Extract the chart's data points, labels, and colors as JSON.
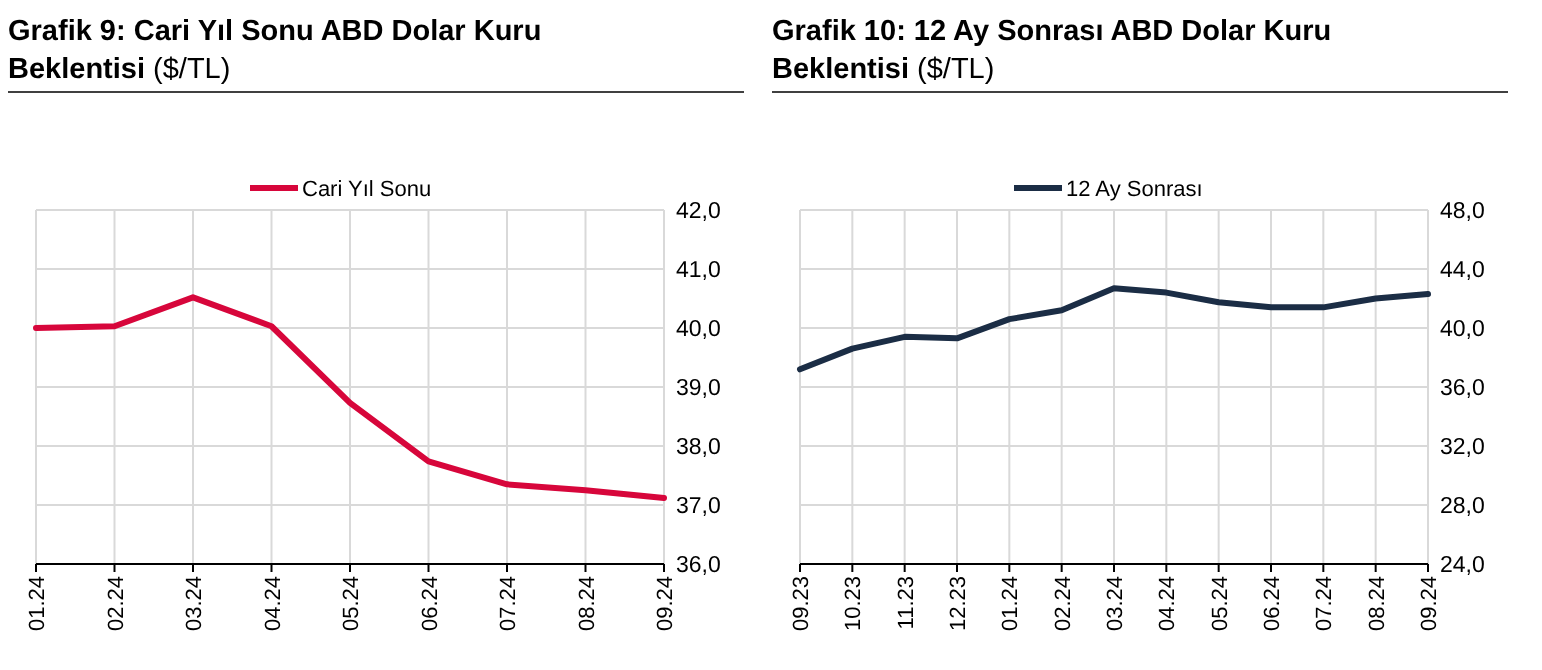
{
  "chart_data": [
    {
      "type": "line",
      "title": "Grafik 9: Cari Yıl Sonu ABD Dolar Kuru Beklentisi ($/TL)",
      "categories": [
        "01.24",
        "02.24",
        "03.24",
        "04.24",
        "05.24",
        "06.24",
        "07.24",
        "08.24",
        "09.24"
      ],
      "series": [
        {
          "name": "Cari Yıl Sonu",
          "color": "#d7063b",
          "values": [
            40.0,
            40.03,
            40.52,
            40.03,
            38.73,
            37.74,
            37.35,
            37.25,
            37.12
          ]
        }
      ],
      "ylim": [
        36,
        42
      ],
      "yticks": [
        {
          "value": 36,
          "label": "36,0"
        },
        {
          "value": 37,
          "label": "37,0"
        },
        {
          "value": 38,
          "label": "38,0"
        },
        {
          "value": 39,
          "label": "39,0"
        },
        {
          "value": 40,
          "label": "40,0"
        },
        {
          "value": 41,
          "label": "41,0"
        },
        {
          "value": 42,
          "label": "42,0"
        }
      ],
      "grid": true,
      "legend": "top",
      "marker": "none",
      "line_style": "solid"
    },
    {
      "type": "line",
      "title": "Grafik 10: 12 Ay Sonrası ABD Dolar Kuru Beklentisi ($/TL)",
      "categories": [
        "09.23",
        "10.23",
        "11.23",
        "12.23",
        "01.24",
        "02.24",
        "03.24",
        "04.24",
        "05.24",
        "06.24",
        "07.24",
        "08.24",
        "09.24"
      ],
      "series": [
        {
          "name": "12 Ay Sonrası",
          "color": "#1b2d45",
          "values": [
            37.2,
            38.6,
            39.4,
            39.3,
            40.6,
            41.2,
            42.7,
            42.4,
            41.75,
            41.4,
            41.4,
            42.0,
            42.3
          ]
        }
      ],
      "ylim": [
        24,
        48
      ],
      "yticks": [
        {
          "value": 24,
          "label": "24,0"
        },
        {
          "value": 28,
          "label": "28,0"
        },
        {
          "value": 32,
          "label": "32,0"
        },
        {
          "value": 36,
          "label": "36,0"
        },
        {
          "value": 40,
          "label": "40,0"
        },
        {
          "value": 44,
          "label": "44,0"
        },
        {
          "value": 48,
          "label": "48,0"
        }
      ],
      "grid": true,
      "legend": "top",
      "marker": "none",
      "line_style": "solid"
    }
  ]
}
